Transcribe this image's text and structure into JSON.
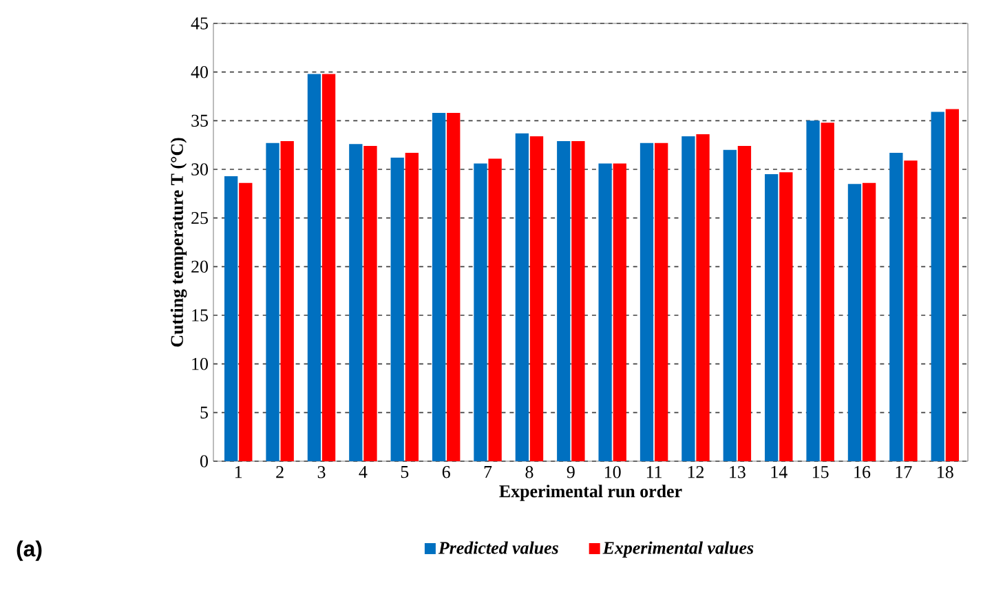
{
  "chart_data": {
    "type": "bar",
    "xlabel": "Experimental run order",
    "ylabel": "Cutting temperature T (°C)",
    "categories": [
      "1",
      "2",
      "3",
      "4",
      "5",
      "6",
      "7",
      "8",
      "9",
      "10",
      "11",
      "12",
      "13",
      "14",
      "15",
      "16",
      "17",
      "18"
    ],
    "series": [
      {
        "name": "Predicted values",
        "color": "#0070c0",
        "values": [
          29.3,
          32.7,
          39.8,
          32.6,
          31.2,
          35.8,
          30.6,
          33.7,
          32.9,
          30.6,
          32.7,
          33.4,
          32.0,
          29.5,
          35.0,
          28.5,
          31.7,
          35.9
        ]
      },
      {
        "name": "Experimental values",
        "color": "#ff0000",
        "values": [
          28.6,
          32.9,
          39.8,
          32.4,
          31.7,
          35.8,
          31.1,
          33.4,
          32.9,
          30.6,
          32.7,
          33.6,
          32.4,
          29.7,
          34.8,
          28.6,
          30.9,
          36.2
        ]
      }
    ],
    "ylim": [
      0,
      45
    ],
    "yticks": [
      0,
      5,
      10,
      15,
      20,
      25,
      30,
      35,
      40,
      45
    ],
    "grid": "y",
    "legend": "bottom",
    "annotations": [
      "(a)"
    ]
  }
}
